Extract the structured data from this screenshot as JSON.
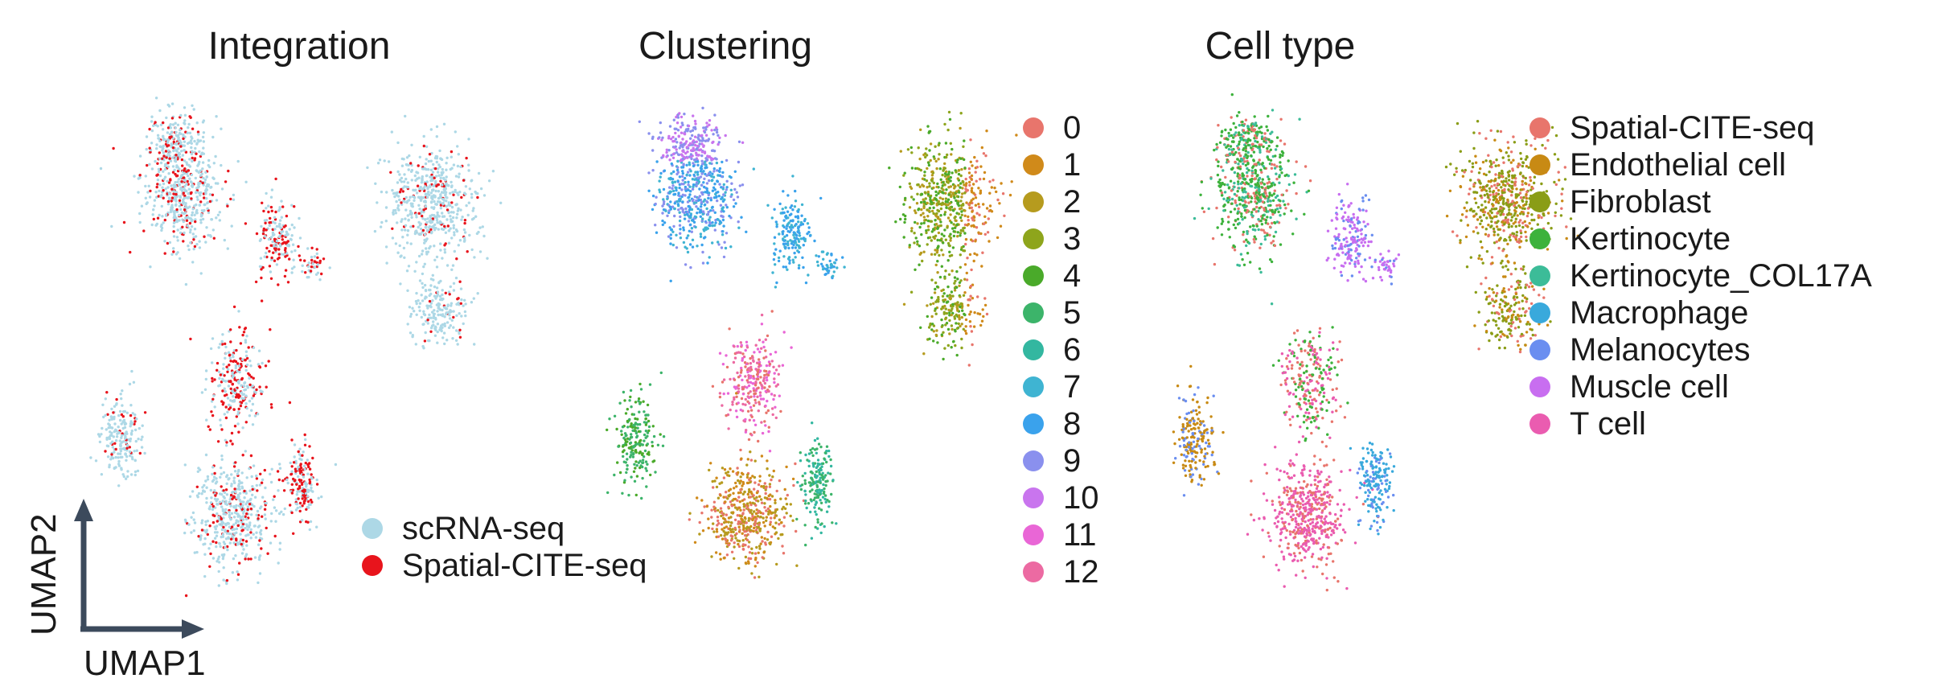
{
  "panels": [
    {
      "title": "Integration"
    },
    {
      "title": "Clustering"
    },
    {
      "title": "Cell type"
    }
  ],
  "axes": {
    "x_label": "UMAP1",
    "y_label": "UMAP2"
  },
  "legends": {
    "integration": [
      {
        "label": "scRNA-seq",
        "color": "#add8e6"
      },
      {
        "label": "Spatial-CITE-seq",
        "color": "#e8141c"
      }
    ],
    "clustering": [
      {
        "label": "0",
        "color": "#e8756c"
      },
      {
        "label": "1",
        "color": "#d08a1a"
      },
      {
        "label": "2",
        "color": "#b69b1e"
      },
      {
        "label": "3",
        "color": "#8ea51c"
      },
      {
        "label": "4",
        "color": "#4aaa2a"
      },
      {
        "label": "5",
        "color": "#3cb46a"
      },
      {
        "label": "6",
        "color": "#33b7a0"
      },
      {
        "label": "7",
        "color": "#3fb4d2"
      },
      {
        "label": "8",
        "color": "#3aa2ec"
      },
      {
        "label": "9",
        "color": "#8a90ee"
      },
      {
        "label": "10",
        "color": "#c975ee"
      },
      {
        "label": "11",
        "color": "#e966d6"
      },
      {
        "label": "12",
        "color": "#ec6aa2"
      }
    ],
    "cell_type": [
      {
        "label": "Spatial-CITE-seq",
        "color": "#e8756c"
      },
      {
        "label": "Endothelial cell",
        "color": "#c88a14"
      },
      {
        "label": "Fibroblast",
        "color": "#8a9d16"
      },
      {
        "label": "Kertinocyte",
        "color": "#3db23c"
      },
      {
        "label": "Kertinocyte_COL17A",
        "color": "#3cbc98"
      },
      {
        "label": "Macrophage",
        "color": "#39a9dc"
      },
      {
        "label": "Melanocytes",
        "color": "#6a8ef0"
      },
      {
        "label": "Muscle cell",
        "color": "#c86ef0"
      },
      {
        "label": "T cell",
        "color": "#ea5cb0"
      }
    ]
  },
  "chart_data": [
    {
      "type": "scatter",
      "title": "Integration",
      "xlabel": "UMAP1",
      "ylabel": "UMAP2",
      "series": [
        {
          "name": "scRNA-seq",
          "color": "#add8e6"
        },
        {
          "name": "Spatial-CITE-seq",
          "color": "#e8141c"
        }
      ]
    },
    {
      "type": "scatter",
      "title": "Clustering",
      "series": [
        {
          "name": "0",
          "color": "#e8756c"
        },
        {
          "name": "1",
          "color": "#d08a1a"
        },
        {
          "name": "2",
          "color": "#b69b1e"
        },
        {
          "name": "3",
          "color": "#8ea51c"
        },
        {
          "name": "4",
          "color": "#4aaa2a"
        },
        {
          "name": "5",
          "color": "#3cb46a"
        },
        {
          "name": "6",
          "color": "#33b7a0"
        },
        {
          "name": "7",
          "color": "#3fb4d2"
        },
        {
          "name": "8",
          "color": "#3aa2ec"
        },
        {
          "name": "9",
          "color": "#8a90ee"
        },
        {
          "name": "10",
          "color": "#c975ee"
        },
        {
          "name": "11",
          "color": "#e966d6"
        },
        {
          "name": "12",
          "color": "#ec6aa2"
        }
      ]
    },
    {
      "type": "scatter",
      "title": "Cell type",
      "series": [
        {
          "name": "Spatial-CITE-seq",
          "color": "#e8756c"
        },
        {
          "name": "Endothelial cell",
          "color": "#c88a14"
        },
        {
          "name": "Fibroblast",
          "color": "#8a9d16"
        },
        {
          "name": "Kertinocyte",
          "color": "#3db23c"
        },
        {
          "name": "Kertinocyte_COL17A",
          "color": "#3cbc98"
        },
        {
          "name": "Macrophage",
          "color": "#39a9dc"
        },
        {
          "name": "Melanocytes",
          "color": "#6a8ef0"
        },
        {
          "name": "Muscle cell",
          "color": "#c86ef0"
        },
        {
          "name": "T cell",
          "color": "#ea5cb0"
        }
      ]
    }
  ]
}
